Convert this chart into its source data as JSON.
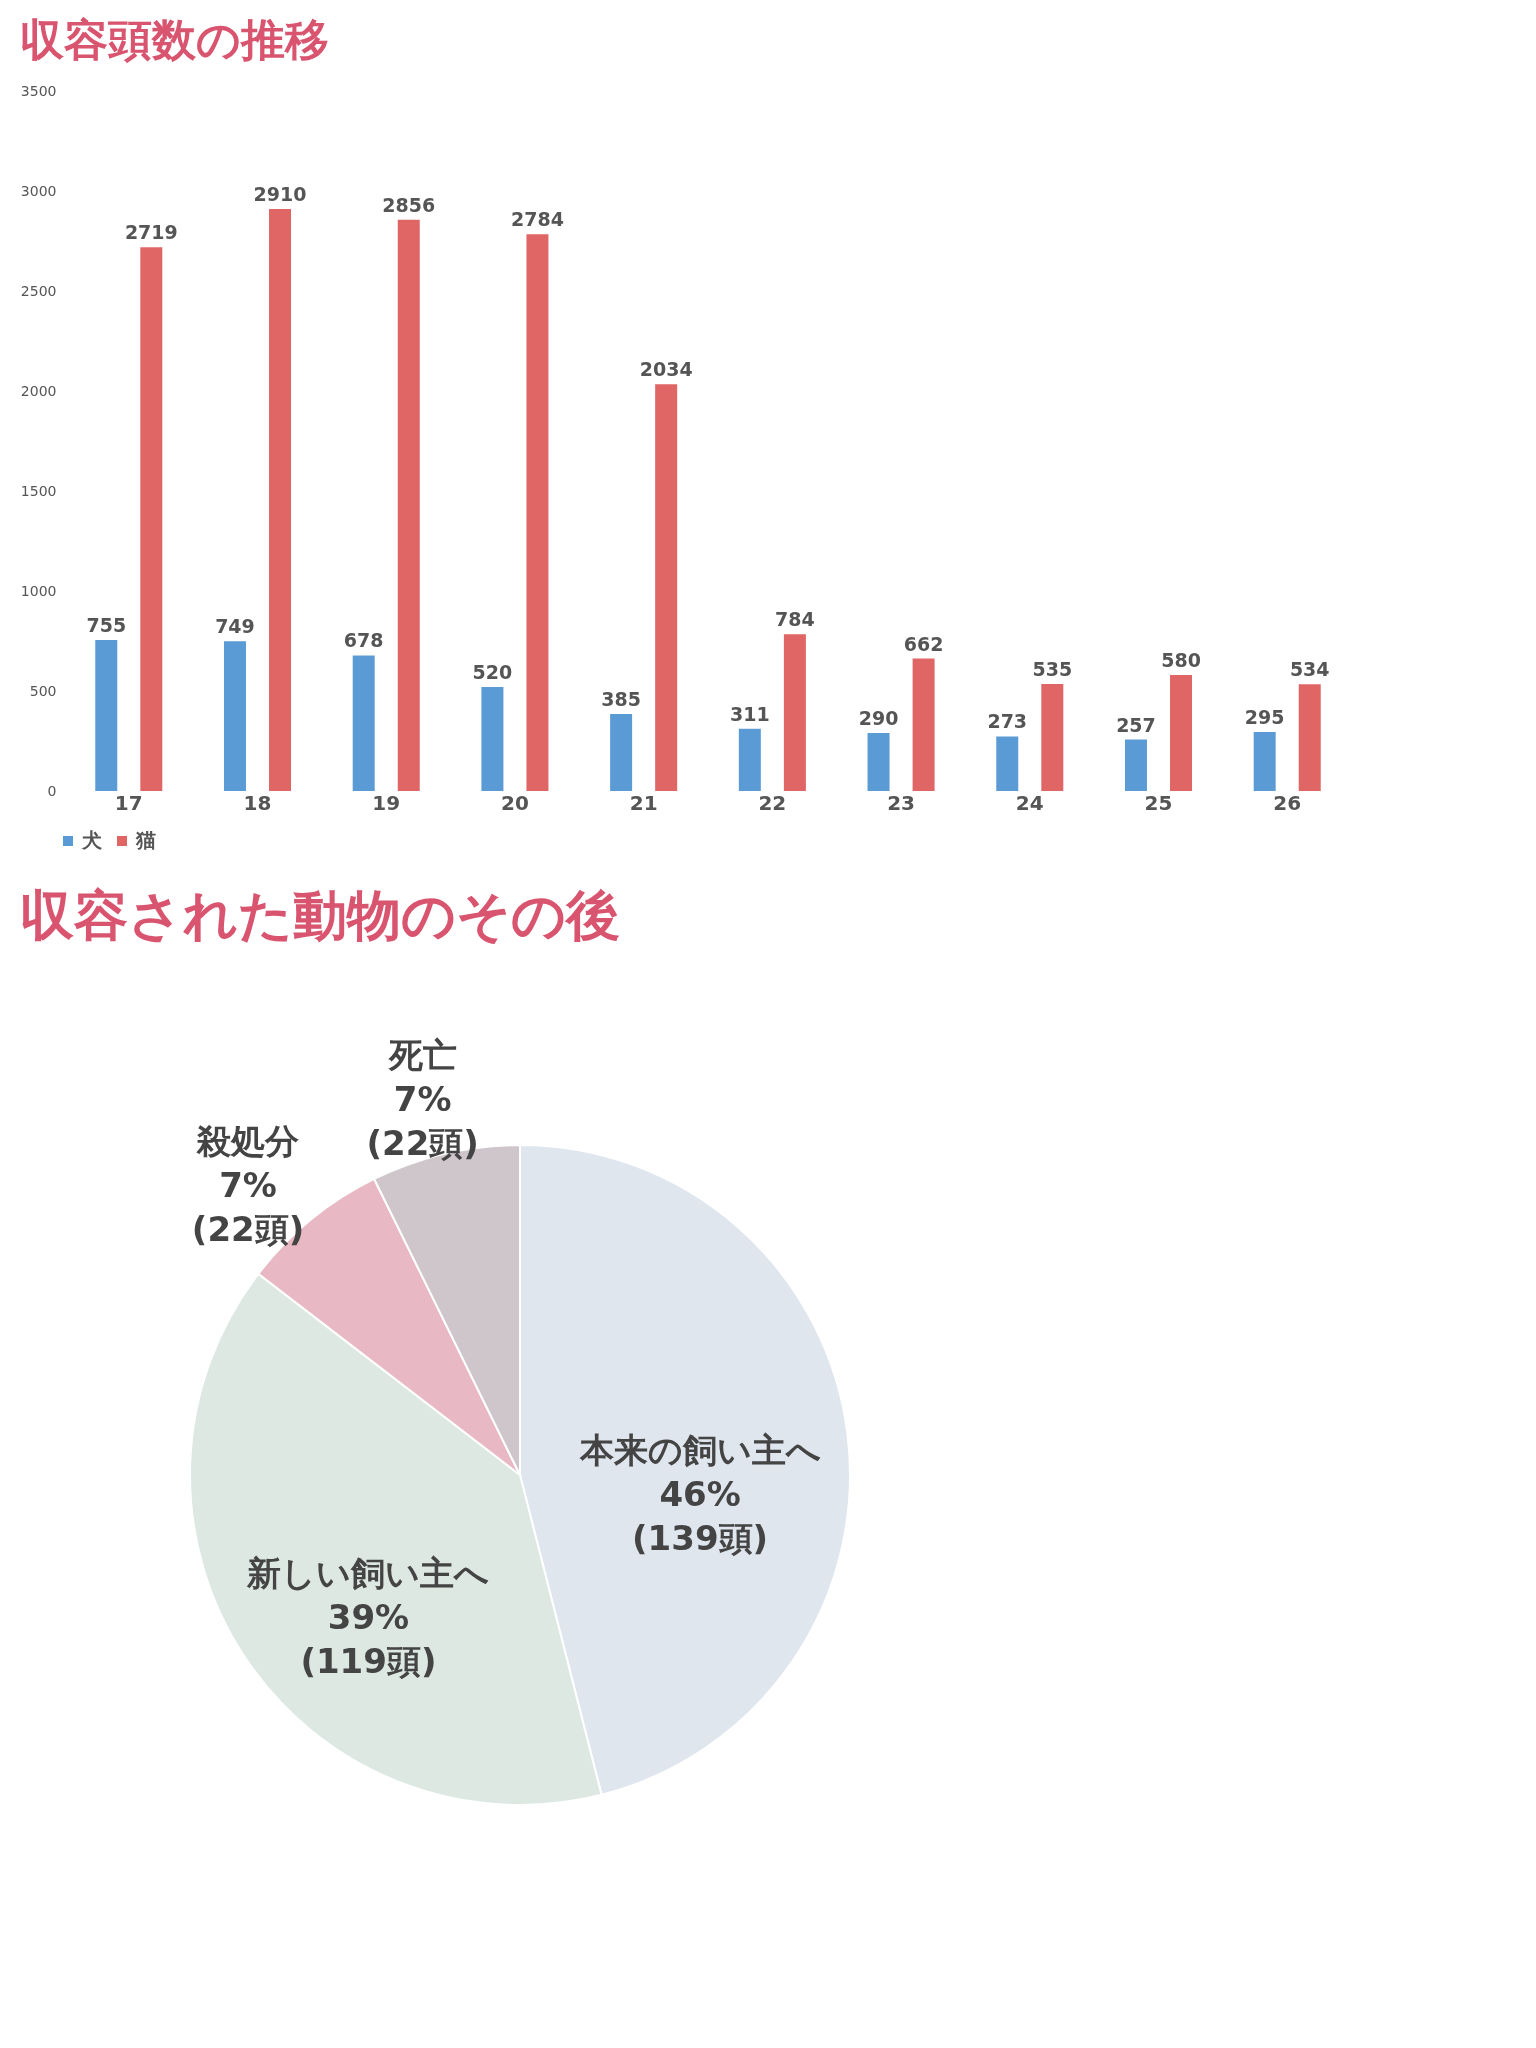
{
  "chart_data": [
    {
      "type": "bar",
      "title": "収容頭数の推移",
      "categories": [
        "17",
        "18",
        "19",
        "20",
        "21",
        "22",
        "23",
        "24",
        "25",
        "26"
      ],
      "series": [
        {
          "name": "犬",
          "color": "#5b9bd5",
          "values": [
            755,
            749,
            678,
            520,
            385,
            311,
            290,
            273,
            257,
            295
          ]
        },
        {
          "name": "猫",
          "color": "#e06666",
          "values": [
            2719,
            2910,
            2856,
            2784,
            2034,
            784,
            662,
            535,
            580,
            534
          ]
        }
      ],
      "ylim": [
        0,
        3500
      ],
      "yticks": [
        0,
        500,
        1000,
        1500,
        2000,
        2500,
        3000,
        3500
      ],
      "data_labels": true,
      "legend": "bottom",
      "grid": false
    },
    {
      "type": "pie",
      "title": "収容された動物のその後",
      "categories": [
        "本来の飼い主へ",
        "新しい飼い主へ",
        "殺処分",
        "死亡"
      ],
      "values": [
        139,
        119,
        22,
        22
      ],
      "value_labels": [
        "46%\n(139頭)",
        "39%\n(119頭)",
        "7%\n(22頭)",
        "7%\n(22頭)"
      ],
      "colors": [
        "#dfe6ee",
        "#dde8e3",
        "#e8b8c4",
        "#cfc6cb"
      ]
    }
  ]
}
